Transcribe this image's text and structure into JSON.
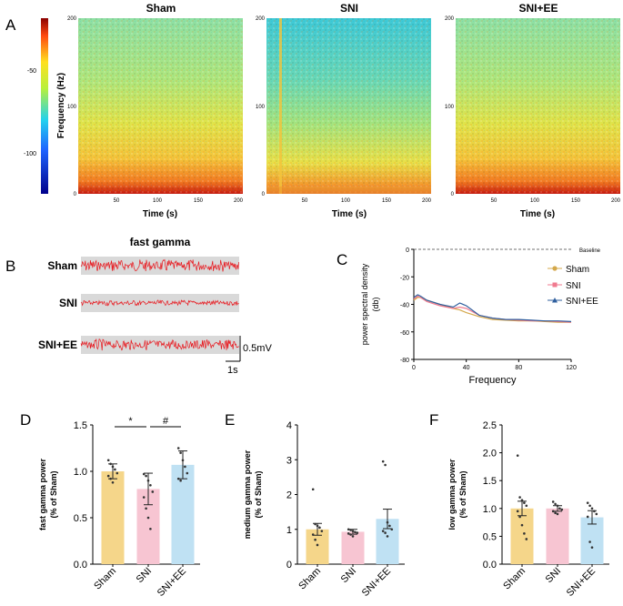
{
  "panel_labels": {
    "A": "A",
    "B": "B",
    "C": "C",
    "D": "D",
    "E": "E",
    "F": "F"
  },
  "colors": {
    "sham": "#f5d68a",
    "sni": "#f7c5d2",
    "snie": "#bfe1f3",
    "trace": "#e8161c",
    "trace_bg": "#d9d9d9",
    "psd_sham": "#d4a84b",
    "psd_sni": "#f07a8f",
    "psd_snie": "#2f5f9e"
  },
  "panel_a": {
    "colorbar": {
      "label": "Frequency (Hz)",
      "ticks": [
        -50,
        -100
      ],
      "range": [
        -125,
        -10
      ]
    },
    "spectrograms": [
      {
        "title": "Sham",
        "xlabel": "Time (s)",
        "xticks": [
          50,
          100,
          150,
          200
        ],
        "yticks": [
          0,
          100,
          200
        ]
      },
      {
        "title": "SNI",
        "xlabel": "Time (s)",
        "xticks": [
          50,
          100,
          150,
          200
        ],
        "yticks": [
          0,
          100,
          200
        ]
      },
      {
        "title": "SNI+EE",
        "xlabel": "Time (s)",
        "xticks": [
          50,
          100,
          150,
          200
        ],
        "yticks": [
          0,
          100,
          200
        ]
      }
    ]
  },
  "panel_b": {
    "title": "fast gamma",
    "rows": [
      {
        "label": "Sham",
        "amplitude": 1.0
      },
      {
        "label": "SNI",
        "amplitude": 0.45
      },
      {
        "label": "SNI+EE",
        "amplitude": 0.9
      }
    ],
    "scale_v": "0.5mV",
    "scale_t": "1s"
  },
  "chart_data": [
    {
      "id": "C",
      "type": "line",
      "ylabel": "power spectral density",
      "ylabel2": "(db)",
      "xlabel": "Frequency",
      "xlim": [
        0,
        120
      ],
      "ylim": [
        -80,
        0
      ],
      "xticks": [
        0,
        40,
        80,
        120
      ],
      "yticks": [
        0,
        -20,
        -40,
        -60,
        -80
      ],
      "baseline": {
        "value": 0,
        "label": "Baseline"
      },
      "legend": [
        "Sham",
        "SNI",
        "SNI+EE"
      ],
      "series": [
        {
          "name": "Sham",
          "x": [
            0,
            3,
            5,
            10,
            20,
            30,
            35,
            40,
            50,
            60,
            70,
            80,
            90,
            100,
            110,
            120
          ],
          "y": [
            -37,
            -35,
            -35,
            -37,
            -40,
            -43,
            -44,
            -46,
            -49,
            -51,
            -51.5,
            -52,
            -52,
            -52.5,
            -53,
            -53
          ]
        },
        {
          "name": "SNI",
          "x": [
            0,
            3,
            5,
            10,
            20,
            30,
            35,
            40,
            50,
            60,
            70,
            80,
            90,
            100,
            110,
            120
          ],
          "y": [
            -36,
            -34,
            -35,
            -38,
            -41,
            -43,
            -42,
            -43,
            -48,
            -50,
            -51,
            -51.5,
            -52,
            -52,
            -52.5,
            -53
          ]
        },
        {
          "name": "SNI+EE",
          "x": [
            0,
            3,
            5,
            10,
            20,
            30,
            35,
            40,
            50,
            60,
            70,
            80,
            90,
            100,
            110,
            120
          ],
          "y": [
            -35,
            -33,
            -34,
            -37,
            -40,
            -42,
            -39,
            -41,
            -48,
            -50,
            -51,
            -51,
            -51.5,
            -52,
            -52,
            -52.5
          ]
        }
      ]
    },
    {
      "id": "D",
      "type": "bar",
      "ylabel": "fast gamma power",
      "ylabel2": "(% of Sham)",
      "categories": [
        "Sham",
        "SNI",
        "SNI+EE"
      ],
      "values": [
        1.0,
        0.81,
        1.07
      ],
      "errors": [
        0.08,
        0.17,
        0.15
      ],
      "ylim": [
        0,
        1.5
      ],
      "yticks": [
        "0.0",
        "0.5",
        "1.0",
        "1.5"
      ],
      "points": [
        [
          1.12,
          1.08,
          1.05,
          1.02,
          0.98,
          0.95,
          0.92,
          0.88
        ],
        [
          0.97,
          0.95,
          0.9,
          0.85,
          0.78,
          0.72,
          0.6,
          0.5,
          0.38
        ],
        [
          1.25,
          1.2,
          1.12,
          1.05,
          0.98,
          0.92,
          0.9
        ]
      ],
      "significance": [
        {
          "from": 0,
          "to": 1,
          "label": "*"
        },
        {
          "from": 1,
          "to": 2,
          "label": "#"
        }
      ]
    },
    {
      "id": "E",
      "type": "bar",
      "ylabel": "medium gamma power",
      "ylabel2": "(% of Sham)",
      "categories": [
        "Sham",
        "SNI",
        "SNI+EE"
      ],
      "values": [
        1.0,
        0.93,
        1.3
      ],
      "errors": [
        0.17,
        0.07,
        0.28
      ],
      "ylim": [
        0,
        4
      ],
      "yticks": [
        "0",
        "1",
        "2",
        "3",
        "4"
      ],
      "points": [
        [
          2.15,
          1.15,
          1.1,
          1.05,
          0.95,
          0.85,
          0.7,
          0.55
        ],
        [
          1.0,
          0.98,
          0.95,
          0.92,
          0.9,
          0.88,
          0.85,
          0.8
        ],
        [
          2.95,
          2.85,
          1.2,
          1.1,
          1.0,
          0.95,
          0.9,
          0.8
        ]
      ],
      "significance": []
    },
    {
      "id": "F",
      "type": "bar",
      "ylabel": "low gamma power",
      "ylabel2": "(% of Sham)",
      "categories": [
        "Sham",
        "SNI",
        "SNI+EE"
      ],
      "values": [
        1.0,
        1.0,
        0.84
      ],
      "errors": [
        0.13,
        0.05,
        0.12
      ],
      "ylim": [
        0,
        2.5
      ],
      "yticks": [
        "0.0",
        "0.5",
        "1.0",
        "1.5",
        "2.0",
        "2.5"
      ],
      "points": [
        [
          1.95,
          1.2,
          1.15,
          1.1,
          1.05,
          0.95,
          0.85,
          0.7,
          0.55,
          0.45
        ],
        [
          1.12,
          1.08,
          1.05,
          1.0,
          0.98,
          0.95,
          0.92,
          0.9
        ],
        [
          1.1,
          1.05,
          1.0,
          0.95,
          0.9,
          0.85,
          0.4,
          0.3
        ]
      ],
      "significance": []
    }
  ]
}
